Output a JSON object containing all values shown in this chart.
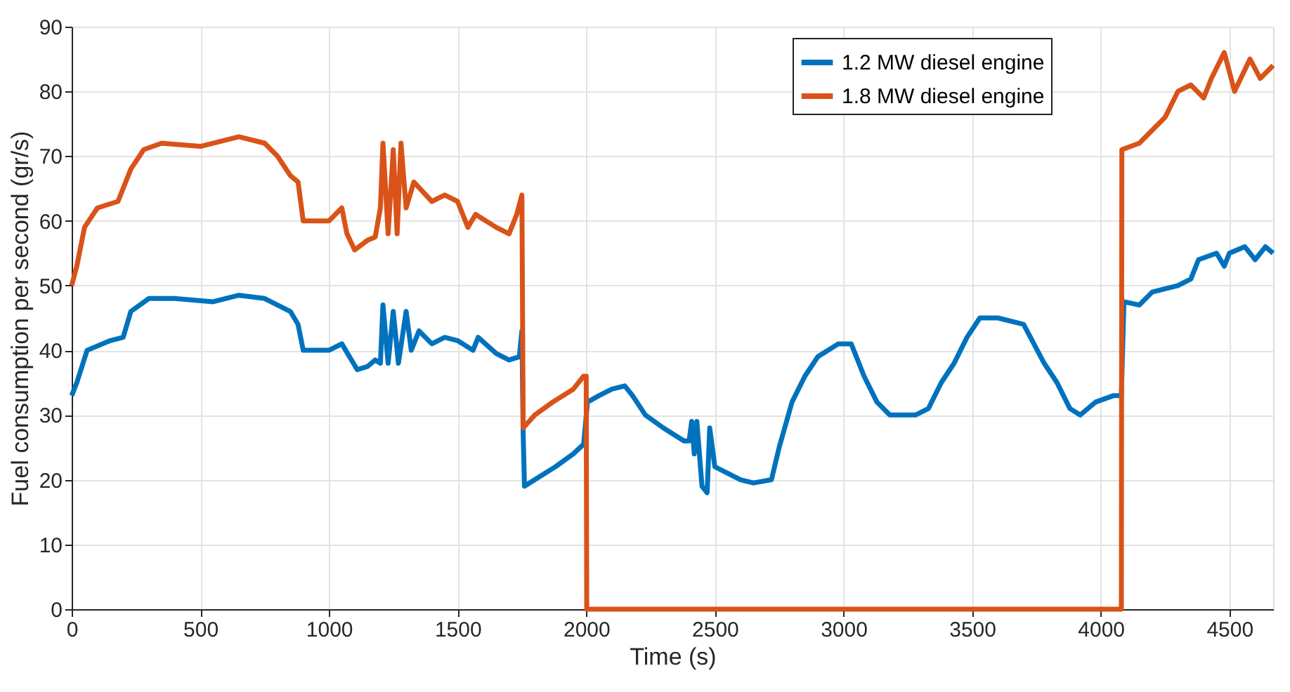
{
  "chart_data": {
    "type": "line",
    "xlabel": "Time (s)",
    "ylabel": "Fuel consumption per second (gr/s)",
    "xlim": [
      0,
      4670
    ],
    "ylim": [
      0,
      90
    ],
    "xticks": [
      0,
      500,
      1000,
      1500,
      2000,
      2500,
      3000,
      3500,
      4000,
      4500
    ],
    "yticks": [
      0,
      10,
      20,
      30,
      40,
      50,
      60,
      70,
      80,
      90
    ],
    "grid": true,
    "legend": "top right",
    "line_style": "solid",
    "marker": "none",
    "series": [
      {
        "name": "1.2 MW diesel engine",
        "color": "#0072bd",
        "x": [
          0,
          20,
          60,
          150,
          200,
          230,
          300,
          400,
          550,
          650,
          750,
          850,
          880,
          900,
          1000,
          1050,
          1080,
          1110,
          1150,
          1180,
          1200,
          1210,
          1230,
          1250,
          1270,
          1300,
          1320,
          1350,
          1400,
          1450,
          1500,
          1560,
          1580,
          1650,
          1700,
          1740,
          1750,
          1755,
          1760,
          1800,
          1880,
          1950,
          1990,
          2005,
          2050,
          2100,
          2150,
          2180,
          2230,
          2300,
          2380,
          2400,
          2410,
          2420,
          2430,
          2450,
          2470,
          2480,
          2500,
          2550,
          2600,
          2650,
          2720,
          2750,
          2800,
          2850,
          2900,
          2980,
          3030,
          3080,
          3130,
          3180,
          3280,
          3330,
          3380,
          3430,
          3480,
          3530,
          3600,
          3700,
          3780,
          3830,
          3880,
          3920,
          3980,
          4050,
          4080,
          4090,
          4150,
          4200,
          4300,
          4350,
          4380,
          4450,
          4480,
          4500,
          4560,
          4600,
          4640,
          4670
        ],
        "values": [
          33,
          35,
          40,
          41.5,
          42,
          46,
          48,
          48,
          47.5,
          48.5,
          48,
          46,
          44,
          40,
          40,
          41,
          39,
          37,
          37.5,
          38.5,
          38,
          47,
          38,
          46,
          38,
          46,
          40,
          43,
          41,
          42,
          41.5,
          40,
          42,
          39.5,
          38.5,
          39,
          43,
          27,
          19,
          20,
          22,
          24,
          25.5,
          32,
          33,
          34,
          34.5,
          33,
          30,
          28,
          26,
          26,
          29,
          24,
          29,
          19,
          18,
          28,
          22,
          21,
          20,
          19.5,
          20,
          25,
          32,
          36,
          39,
          41,
          41,
          36,
          32,
          30,
          30,
          31,
          35,
          38,
          42,
          45,
          45,
          44,
          38,
          35,
          31,
          30,
          32,
          33,
          33,
          47.5,
          47,
          49,
          50,
          51,
          54,
          55,
          53,
          55,
          56,
          54,
          56,
          55
        ]
      },
      {
        "name": "1.8 MW diesel engine",
        "color": "#d95319",
        "x": [
          0,
          20,
          50,
          100,
          180,
          230,
          280,
          350,
          500,
          650,
          750,
          800,
          850,
          880,
          900,
          1000,
          1050,
          1070,
          1100,
          1150,
          1180,
          1200,
          1210,
          1230,
          1250,
          1265,
          1280,
          1300,
          1330,
          1400,
          1450,
          1500,
          1540,
          1570,
          1650,
          1700,
          1730,
          1750,
          1755,
          1800,
          1870,
          1950,
          1990,
          2000,
          2002,
          4080,
          4082,
          4150,
          4200,
          4250,
          4300,
          4350,
          4400,
          4430,
          4480,
          4520,
          4580,
          4620,
          4670
        ],
        "values": [
          50,
          53,
          59,
          62,
          63,
          68,
          71,
          72,
          71.5,
          73,
          72,
          70,
          67,
          66,
          60,
          60,
          62,
          58,
          55.5,
          57,
          57.5,
          62,
          72,
          58,
          71,
          58,
          72,
          62,
          66,
          63,
          64,
          63,
          59,
          61,
          59,
          58,
          61,
          64,
          28,
          30,
          32,
          34,
          36,
          36,
          0,
          0,
          71,
          72,
          74,
          76,
          80,
          81,
          79,
          82,
          86,
          80,
          85,
          82,
          84
        ]
      }
    ]
  }
}
